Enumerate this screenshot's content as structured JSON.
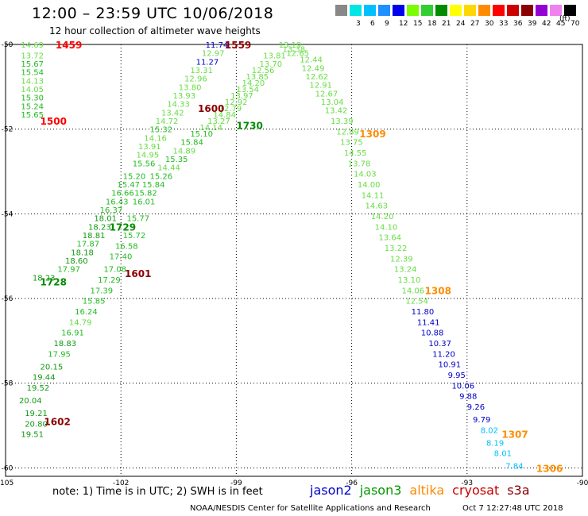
{
  "header": {
    "title": "12:00 – 23:59 UTC 10/06/2018",
    "subtitle": "12 hour collection of altimeter wave heights"
  },
  "colorbar": {
    "unit": "(ft)",
    "bins": [
      {
        "label": "",
        "color": "#888888"
      },
      {
        "label": "3",
        "color": "#00e5e5"
      },
      {
        "label": "6",
        "color": "#00bfff"
      },
      {
        "label": "9",
        "color": "#1e90ff"
      },
      {
        "label": "12",
        "color": "#0000ee"
      },
      {
        "label": "15",
        "color": "#7cfc00"
      },
      {
        "label": "18",
        "color": "#32cd32"
      },
      {
        "label": "21",
        "color": "#008b00"
      },
      {
        "label": "24",
        "color": "#ffff00"
      },
      {
        "label": "27",
        "color": "#ffd700"
      },
      {
        "label": "30",
        "color": "#ff8c00"
      },
      {
        "label": "33",
        "color": "#ff0000"
      },
      {
        "label": "36",
        "color": "#cd0000"
      },
      {
        "label": "39",
        "color": "#8b0000"
      },
      {
        "label": "42",
        "color": "#9400d3"
      },
      {
        "label": "45",
        "color": "#ee82ee"
      },
      {
        "label": "70",
        "color": "#000000"
      }
    ]
  },
  "colors": {
    "height_0_9": "#00bfff",
    "height_9_12": "#0000c8",
    "height_12_15": "#66dd44",
    "height_15_18": "#22bb22",
    "height_18_21": "#119911"
  },
  "footer": {
    "note": "note:  1) Time is in UTC;  2) SWH is in feet",
    "satellites": [
      {
        "name": "jason2",
        "color": "#0000cc"
      },
      {
        "name": "jason3",
        "color": "#009900"
      },
      {
        "name": "altika",
        "color": "#ff8800"
      },
      {
        "name": "cryosat",
        "color": "#cc0000"
      },
      {
        "name": "s3a",
        "color": "#880000"
      }
    ],
    "credit": "NOAA/NESDIS Center for Satellite Applications and Research",
    "timestamp": "Oct  7 12:27:48 UTC 2018"
  },
  "chart_data": {
    "type": "scatter",
    "title": "12:00 – 23:59 UTC 10/06/2018",
    "subtitle": "12 hour collection of altimeter wave heights",
    "xlabel": "",
    "ylabel": "",
    "xlim": [
      -105,
      -90
    ],
    "ylim": [
      -60.2,
      -50
    ],
    "x_ticks": [
      -105,
      -102,
      -99,
      -96,
      -93,
      -90
    ],
    "y_ticks": [
      -50,
      -52,
      -54,
      -56,
      -58,
      -60
    ],
    "grid": true,
    "time_labels": [
      {
        "text": "1459",
        "lon": -103.7,
        "lat": -50.0,
        "color": "#ff0000"
      },
      {
        "text": "1500",
        "lon": -104.1,
        "lat": -51.8,
        "color": "#ff0000"
      },
      {
        "text": "1559",
        "lon": -99.3,
        "lat": -50.0,
        "color": "#8b0000"
      },
      {
        "text": "1600",
        "lon": -100.0,
        "lat": -51.5,
        "color": "#8b0000"
      },
      {
        "text": "1601",
        "lon": -101.9,
        "lat": -55.4,
        "color": "#8b0000"
      },
      {
        "text": "1602",
        "lon": -104.0,
        "lat": -58.9,
        "color": "#8b0000"
      },
      {
        "text": "1728",
        "lon": -104.1,
        "lat": -55.6,
        "color": "#008b00"
      },
      {
        "text": "1729",
        "lon": -102.3,
        "lat": -54.3,
        "color": "#008b00"
      },
      {
        "text": "1730",
        "lon": -99.0,
        "lat": -51.9,
        "color": "#008b00"
      },
      {
        "text": "1309",
        "lon": -95.8,
        "lat": -52.1,
        "color": "#ff8c00"
      },
      {
        "text": "1308",
        "lon": -94.1,
        "lat": -55.8,
        "color": "#ff8c00"
      },
      {
        "text": "1307",
        "lon": -92.1,
        "lat": -59.2,
        "color": "#ff8c00"
      },
      {
        "text": "1306",
        "lon": -91.2,
        "lat": -60.0,
        "color": "#ff8c00"
      }
    ],
    "series": [
      {
        "points": [
          {
            "lon": -104.6,
            "lat": -50.0,
            "v": "14.69"
          },
          {
            "lon": -104.6,
            "lat": -50.25,
            "v": "13.72"
          },
          {
            "lon": -104.6,
            "lat": -50.45,
            "v": "15.67"
          },
          {
            "lon": -104.6,
            "lat": -50.65,
            "v": "15.54"
          },
          {
            "lon": -104.6,
            "lat": -50.85,
            "v": "14.13"
          },
          {
            "lon": -104.6,
            "lat": -51.05,
            "v": "14.05"
          },
          {
            "lon": -104.6,
            "lat": -51.25,
            "v": "15.30"
          },
          {
            "lon": -104.6,
            "lat": -51.45,
            "v": "15.24"
          },
          {
            "lon": -104.6,
            "lat": -51.65,
            "v": "15.65"
          }
        ]
      },
      {
        "points": [
          {
            "lon": -99.8,
            "lat": -50.0,
            "v": "11.74"
          },
          {
            "lon": -99.9,
            "lat": -50.2,
            "v": "12.97"
          },
          {
            "lon": -100.05,
            "lat": -50.4,
            "v": "11.27"
          },
          {
            "lon": -100.2,
            "lat": -50.6,
            "v": "13.31"
          },
          {
            "lon": -100.35,
            "lat": -50.8,
            "v": "12.96"
          },
          {
            "lon": -100.5,
            "lat": -51.0,
            "v": "13.80"
          },
          {
            "lon": -100.65,
            "lat": -51.2,
            "v": "13.93"
          },
          {
            "lon": -100.8,
            "lat": -51.4,
            "v": "14.33"
          },
          {
            "lon": -100.95,
            "lat": -51.6,
            "v": "13.42"
          },
          {
            "lon": -101.1,
            "lat": -51.8,
            "v": "14.72"
          },
          {
            "lon": -101.25,
            "lat": -52.0,
            "v": "15.32"
          },
          {
            "lon": -101.4,
            "lat": -52.2,
            "v": "14.16"
          },
          {
            "lon": -101.55,
            "lat": -52.4,
            "v": "13.91"
          },
          {
            "lon": -101.6,
            "lat": -52.6,
            "v": "14.95"
          },
          {
            "lon": -101.7,
            "lat": -52.8,
            "v": "15.56"
          },
          {
            "lon": -101.95,
            "lat": -53.1,
            "v": "15.20"
          },
          {
            "lon": -102.1,
            "lat": -53.3,
            "v": "15.47"
          },
          {
            "lon": -102.25,
            "lat": -53.5,
            "v": "16.66"
          },
          {
            "lon": -102.4,
            "lat": -53.7,
            "v": "16.43"
          },
          {
            "lon": -102.55,
            "lat": -53.9,
            "v": "16.37"
          },
          {
            "lon": -102.7,
            "lat": -54.1,
            "v": "18.01"
          },
          {
            "lon": -102.85,
            "lat": -54.3,
            "v": "18.23"
          },
          {
            "lon": -103.0,
            "lat": -54.5,
            "v": "18.81"
          },
          {
            "lon": -103.15,
            "lat": -54.7,
            "v": "17.87"
          },
          {
            "lon": -103.3,
            "lat": -54.9,
            "v": "18.18"
          },
          {
            "lon": -103.45,
            "lat": -55.1,
            "v": "18.60"
          },
          {
            "lon": -103.65,
            "lat": -55.3,
            "v": "17.97"
          },
          {
            "lon": -104.3,
            "lat": -55.5,
            "v": "18.23"
          }
        ]
      },
      {
        "points": [
          {
            "lon": -97.9,
            "lat": -50.0,
            "v": "13.19"
          },
          {
            "lon": -97.8,
            "lat": -50.1,
            "v": "13.38"
          },
          {
            "lon": -97.7,
            "lat": -50.2,
            "v": "12.65"
          },
          {
            "lon": -97.35,
            "lat": -50.35,
            "v": "12.44"
          },
          {
            "lon": -97.3,
            "lat": -50.55,
            "v": "12.49"
          },
          {
            "lon": -97.2,
            "lat": -50.75,
            "v": "12.62"
          },
          {
            "lon": -97.1,
            "lat": -50.95,
            "v": "12.91"
          },
          {
            "lon": -96.95,
            "lat": -51.15,
            "v": "12.67"
          },
          {
            "lon": -96.8,
            "lat": -51.35,
            "v": "13.04"
          },
          {
            "lon": -96.7,
            "lat": -51.55,
            "v": "13.42"
          },
          {
            "lon": -96.55,
            "lat": -51.8,
            "v": "13.39"
          },
          {
            "lon": -96.4,
            "lat": -52.05,
            "v": "12.89"
          },
          {
            "lon": -96.3,
            "lat": -52.3,
            "v": "13.75"
          },
          {
            "lon": -96.2,
            "lat": -52.55,
            "v": "14.55"
          },
          {
            "lon": -96.1,
            "lat": -52.8,
            "v": "13.78"
          },
          {
            "lon": -95.95,
            "lat": -53.05,
            "v": "14.03"
          },
          {
            "lon": -95.85,
            "lat": -53.3,
            "v": "14.00"
          },
          {
            "lon": -95.75,
            "lat": -53.55,
            "v": "14.11"
          },
          {
            "lon": -95.65,
            "lat": -53.8,
            "v": "14.63"
          },
          {
            "lon": -95.5,
            "lat": -54.05,
            "v": "14.20"
          },
          {
            "lon": -95.4,
            "lat": -54.3,
            "v": "14.10"
          },
          {
            "lon": -95.3,
            "lat": -54.55,
            "v": "13.64"
          },
          {
            "lon": -95.15,
            "lat": -54.8,
            "v": "13.22"
          },
          {
            "lon": -95.0,
            "lat": -55.05,
            "v": "12.39"
          },
          {
            "lon": -94.9,
            "lat": -55.3,
            "v": "13.24"
          },
          {
            "lon": -94.8,
            "lat": -55.55,
            "v": "13.10"
          },
          {
            "lon": -94.7,
            "lat": -55.8,
            "v": "14.06"
          },
          {
            "lon": -94.6,
            "lat": -56.05,
            "v": "12.54"
          },
          {
            "lon": -94.45,
            "lat": -56.3,
            "v": "11.80"
          },
          {
            "lon": -94.3,
            "lat": -56.55,
            "v": "11.41"
          },
          {
            "lon": -94.2,
            "lat": -56.8,
            "v": "10.88"
          },
          {
            "lon": -94.0,
            "lat": -57.05,
            "v": "10.37"
          },
          {
            "lon": -93.9,
            "lat": -57.3,
            "v": "11.20"
          },
          {
            "lon": -93.75,
            "lat": -57.55,
            "v": "10.91"
          },
          {
            "lon": -93.5,
            "lat": -57.8,
            "v": "9.95"
          },
          {
            "lon": -93.4,
            "lat": -58.05,
            "v": "10.06"
          },
          {
            "lon": -93.2,
            "lat": -58.3,
            "v": "9.88"
          },
          {
            "lon": -93.0,
            "lat": -58.55,
            "v": "9.26"
          },
          {
            "lon": -92.85,
            "lat": -58.85,
            "v": "9.79"
          },
          {
            "lon": -92.65,
            "lat": -59.1,
            "v": "8.02"
          },
          {
            "lon": -92.5,
            "lat": -59.4,
            "v": "8.19"
          },
          {
            "lon": -92.3,
            "lat": -59.65,
            "v": "8.01"
          },
          {
            "lon": -92.0,
            "lat": -59.95,
            "v": "7.84"
          }
        ]
      },
      {
        "points": [
          {
            "lon": -98.3,
            "lat": -50.25,
            "v": "13.81"
          },
          {
            "lon": -98.4,
            "lat": -50.45,
            "v": "13.70"
          },
          {
            "lon": -98.6,
            "lat": -50.6,
            "v": "12.56"
          },
          {
            "lon": -98.75,
            "lat": -50.75,
            "v": "13.85"
          },
          {
            "lon": -98.85,
            "lat": -50.9,
            "v": "14.20"
          },
          {
            "lon": -99.0,
            "lat": -51.05,
            "v": "13.54"
          },
          {
            "lon": -99.15,
            "lat": -51.2,
            "v": "13.97"
          },
          {
            "lon": -99.3,
            "lat": -51.35,
            "v": "12.92"
          },
          {
            "lon": -99.45,
            "lat": -51.5,
            "v": "12.79"
          },
          {
            "lon": -99.6,
            "lat": -51.65,
            "v": "14.84"
          },
          {
            "lon": -99.75,
            "lat": -51.8,
            "v": "13.27"
          },
          {
            "lon": -99.95,
            "lat": -51.95,
            "v": "14.14"
          },
          {
            "lon": -100.2,
            "lat": -52.1,
            "v": "15.10"
          },
          {
            "lon": -100.45,
            "lat": -52.3,
            "v": "15.84"
          },
          {
            "lon": -100.65,
            "lat": -52.5,
            "v": "14.89"
          },
          {
            "lon": -100.85,
            "lat": -52.7,
            "v": "15.35"
          },
          {
            "lon": -101.05,
            "lat": -52.9,
            "v": "14.44"
          },
          {
            "lon": -101.25,
            "lat": -53.1,
            "v": "15.26"
          },
          {
            "lon": -101.45,
            "lat": -53.3,
            "v": "15.84"
          },
          {
            "lon": -101.65,
            "lat": -53.5,
            "v": "15.82"
          },
          {
            "lon": -101.7,
            "lat": -53.7,
            "v": "16.01"
          },
          {
            "lon": -101.85,
            "lat": -54.1,
            "v": "15.77"
          },
          {
            "lon": -101.95,
            "lat": -54.5,
            "v": "15.72"
          },
          {
            "lon": -102.15,
            "lat": -54.75,
            "v": "16.58"
          },
          {
            "lon": -102.3,
            "lat": -55.0,
            "v": "17.40"
          },
          {
            "lon": -102.45,
            "lat": -55.3,
            "v": "17.08"
          },
          {
            "lon": -102.6,
            "lat": -55.55,
            "v": "17.29"
          },
          {
            "lon": -102.8,
            "lat": -55.8,
            "v": "17.39"
          },
          {
            "lon": -103.0,
            "lat": -56.05,
            "v": "15.85"
          },
          {
            "lon": -103.2,
            "lat": -56.3,
            "v": "16.24"
          },
          {
            "lon": -103.35,
            "lat": -56.55,
            "v": "14.79"
          },
          {
            "lon": -103.55,
            "lat": -56.8,
            "v": "16.91"
          },
          {
            "lon": -103.75,
            "lat": -57.05,
            "v": "18.83"
          },
          {
            "lon": -103.9,
            "lat": -57.3,
            "v": "17.95"
          },
          {
            "lon": -104.1,
            "lat": -57.6,
            "v": "20.15"
          },
          {
            "lon": -104.3,
            "lat": -57.85,
            "v": "19.44"
          },
          {
            "lon": -104.45,
            "lat": -58.1,
            "v": "19.52"
          },
          {
            "lon": -104.65,
            "lat": -58.4,
            "v": "20.04"
          },
          {
            "lon": -104.5,
            "lat": -58.7,
            "v": "19.21"
          },
          {
            "lon": -104.5,
            "lat": -58.95,
            "v": "20.80"
          },
          {
            "lon": -104.6,
            "lat": -59.2,
            "v": "19.51"
          }
        ]
      }
    ]
  }
}
